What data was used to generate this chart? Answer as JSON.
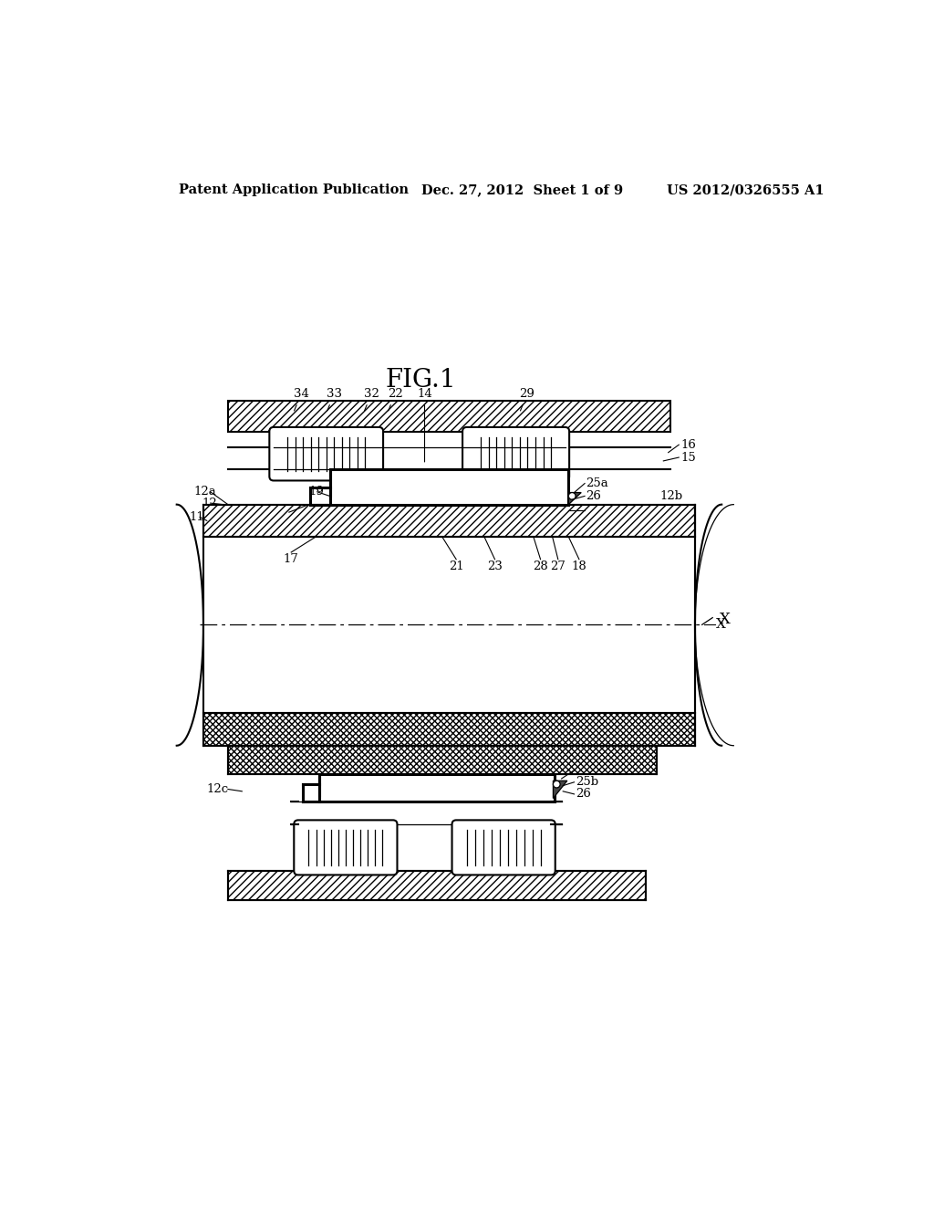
{
  "bg_color": "#ffffff",
  "line_color": "#000000",
  "header_left": "Patent Application Publication",
  "header_mid": "Dec. 27, 2012  Sheet 1 of 9",
  "header_right": "US 2012/0326555 A1",
  "fig_label": "FIG.1"
}
